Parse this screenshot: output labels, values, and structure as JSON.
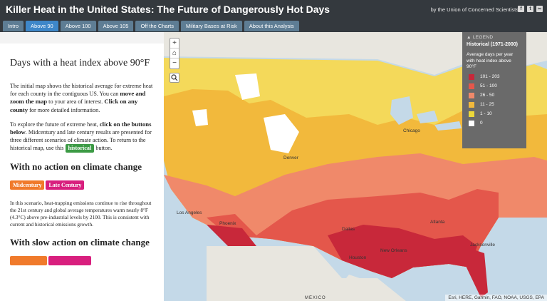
{
  "header": {
    "title": "Killer Heat in the United States: The Future of Dangerously Hot Days",
    "byline": "by the Union of Concerned Scientists",
    "social_icons": [
      "facebook-icon",
      "twitter-icon",
      "link-icon"
    ]
  },
  "tabs": [
    {
      "label": "Intro"
    },
    {
      "label": "Above 90"
    },
    {
      "label": "Above 100"
    },
    {
      "label": "Above 105"
    },
    {
      "label": "Off the Charts"
    },
    {
      "label": "Military Bases at Risk"
    },
    {
      "label": "About this Analysis"
    }
  ],
  "active_tab": "Above 90",
  "sidebar": {
    "title": "Days with a heat index above 90°F",
    "p1": {
      "a": "The initial map shows the historical average for extreme heat for each county in the contiguous US. You can ",
      "b": "move and zoom the map",
      "c": " to your area of interest. ",
      "d": "Click on any county",
      "e": " for more detailed information."
    },
    "p2": {
      "a": "To explore the future of extreme heat, ",
      "b": "click on the buttons below",
      "c": ". Midcentury and late century results are presented for three different scenarios of climate action. To return to the historical map, use this ",
      "d": "historical",
      "e": " button."
    },
    "section1": {
      "heading": "With no action on climate change",
      "btn_mid": "Midcentury",
      "btn_late": "Late Century",
      "text": "In this scenario, heat-trapping emissions continue to rise throughout the 21st century and global average temperatures warm nearly 8°F (4.3°C) above pre-industrial levels by 2100. This is consistent with current and historical emissions growth."
    },
    "section2": {
      "heading": "With slow action on climate change"
    }
  },
  "map_controls": {
    "zoom_in": "+",
    "home": "⌂",
    "zoom_out": "−",
    "search_icon": "search-icon"
  },
  "legend": {
    "header": "LEGEND",
    "title": "Historical (1971-2000)",
    "description": "Average days per year with heat index above 90°F",
    "items": [
      {
        "label": "101 - 203",
        "color": "#c8283a"
      },
      {
        "label": "51 - 100",
        "color": "#e4574b"
      },
      {
        "label": "26 - 50",
        "color": "#f0896a"
      },
      {
        "label": "11 - 25",
        "color": "#f2b93c"
      },
      {
        "label": "1 - 10",
        "color": "#ecd83a"
      },
      {
        "label": "0",
        "color": "#ffffff"
      }
    ]
  },
  "map_labels": [
    {
      "text": "Houston"
    },
    {
      "text": "New Orleans"
    },
    {
      "text": "Dallas"
    },
    {
      "text": "Atlanta"
    },
    {
      "text": "Chicago"
    },
    {
      "text": "Denver"
    },
    {
      "text": "Los Angeles"
    },
    {
      "text": "Phoenix"
    },
    {
      "text": "Jacksonville"
    },
    {
      "text": "MEXICO"
    }
  ],
  "attribution": "Esri, HERE, Garmin, FAO, NOAA, USGS, EPA",
  "colors": {
    "topbar": "#34393e",
    "tab": "#5e7d94",
    "tab_active": "#3e87c9",
    "water": "#c4d9e8",
    "land_outside": "#e8e6df"
  }
}
